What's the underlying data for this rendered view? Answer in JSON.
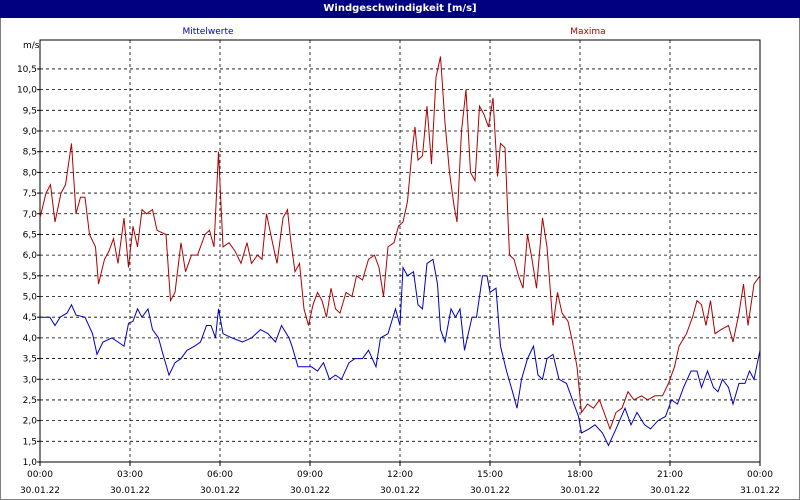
{
  "window": {
    "title": "Windgeschwindigkeit [m/s]"
  },
  "chart_data": {
    "type": "line",
    "title": "Windgeschwindigkeit [m/s]",
    "ylabel": "m/s",
    "xlabel": "",
    "ylim": [
      1.0,
      11.2
    ],
    "xlim": [
      0,
      24
    ],
    "grid": true,
    "yticks": [
      1.0,
      1.5,
      2.0,
      2.5,
      3.0,
      3.5,
      4.0,
      4.5,
      5.0,
      5.5,
      6.0,
      6.5,
      7.0,
      7.5,
      8.0,
      8.5,
      9.0,
      9.5,
      10.0,
      10.5
    ],
    "ytick_labels": [
      "1,0",
      "1,5",
      "2,0",
      "2,5",
      "3,0",
      "3,5",
      "4,0",
      "4,5",
      "5,0",
      "5,5",
      "6,0",
      "6,5",
      "7,0",
      "7,5",
      "8,0",
      "8,5",
      "9,0",
      "9,5",
      "10,0",
      "10,5"
    ],
    "xticks": [
      {
        "time": "00:00",
        "date": "30.01.22"
      },
      {
        "time": "03:00",
        "date": "30.01.22"
      },
      {
        "time": "06:00",
        "date": "30.01.22"
      },
      {
        "time": "09:00",
        "date": "30.01.22"
      },
      {
        "time": "12:00",
        "date": "30.01.22"
      },
      {
        "time": "15:00",
        "date": "30.01.22"
      },
      {
        "time": "18:00",
        "date": "30.01.22"
      },
      {
        "time": "21:00",
        "date": "30.01.22"
      },
      {
        "time": "00:00",
        "date": "31.01.22"
      }
    ],
    "series": [
      {
        "name": "Mittelwerte",
        "color": "#0000c0",
        "points": [
          [
            0,
            4.5
          ],
          [
            0.33,
            4.5
          ],
          [
            0.5,
            4.3
          ],
          [
            0.67,
            4.5
          ],
          [
            0.9,
            4.6
          ],
          [
            1.05,
            4.8
          ],
          [
            1.2,
            4.55
          ],
          [
            1.5,
            4.5
          ],
          [
            1.75,
            4.1
          ],
          [
            1.9,
            3.6
          ],
          [
            2.1,
            3.9
          ],
          [
            2.4,
            4.0
          ],
          [
            2.6,
            3.9
          ],
          [
            2.8,
            3.8
          ],
          [
            2.95,
            4.35
          ],
          [
            3.1,
            4.4
          ],
          [
            3.25,
            4.7
          ],
          [
            3.4,
            4.5
          ],
          [
            3.6,
            4.7
          ],
          [
            3.75,
            4.2
          ],
          [
            3.95,
            4.0
          ],
          [
            4.1,
            3.6
          ],
          [
            4.3,
            3.1
          ],
          [
            4.5,
            3.4
          ],
          [
            4.7,
            3.5
          ],
          [
            4.9,
            3.7
          ],
          [
            5.15,
            3.8
          ],
          [
            5.35,
            3.9
          ],
          [
            5.55,
            4.3
          ],
          [
            5.7,
            4.3
          ],
          [
            5.85,
            4.0
          ],
          [
            5.95,
            4.7
          ],
          [
            6.1,
            4.1
          ],
          [
            6.4,
            4.0
          ],
          [
            6.75,
            3.9
          ],
          [
            7.05,
            4.0
          ],
          [
            7.35,
            4.2
          ],
          [
            7.6,
            4.1
          ],
          [
            7.85,
            3.9
          ],
          [
            8.05,
            4.3
          ],
          [
            8.3,
            4.0
          ],
          [
            8.4,
            3.8
          ],
          [
            8.6,
            3.3
          ],
          [
            9.05,
            3.3
          ],
          [
            9.25,
            3.2
          ],
          [
            9.45,
            3.4
          ],
          [
            9.65,
            3.0
          ],
          [
            9.85,
            3.1
          ],
          [
            10.05,
            3.0
          ],
          [
            10.3,
            3.4
          ],
          [
            10.5,
            3.5
          ],
          [
            10.75,
            3.5
          ],
          [
            10.95,
            3.7
          ],
          [
            11.2,
            3.3
          ],
          [
            11.35,
            4.0
          ],
          [
            11.6,
            4.1
          ],
          [
            11.85,
            4.7
          ],
          [
            12.0,
            4.3
          ],
          [
            12.1,
            5.7
          ],
          [
            12.25,
            5.5
          ],
          [
            12.45,
            5.6
          ],
          [
            12.6,
            4.8
          ],
          [
            12.75,
            4.7
          ],
          [
            12.9,
            5.8
          ],
          [
            13.1,
            5.9
          ],
          [
            13.25,
            5.3
          ],
          [
            13.35,
            4.2
          ],
          [
            13.5,
            3.9
          ],
          [
            13.7,
            4.7
          ],
          [
            13.85,
            4.5
          ],
          [
            14.0,
            4.7
          ],
          [
            14.15,
            3.7
          ],
          [
            14.4,
            4.5
          ],
          [
            14.55,
            4.5
          ],
          [
            14.75,
            5.5
          ],
          [
            14.9,
            5.5
          ],
          [
            15.0,
            5.1
          ],
          [
            15.2,
            5.2
          ],
          [
            15.35,
            3.8
          ],
          [
            15.55,
            3.2
          ],
          [
            15.75,
            2.7
          ],
          [
            15.9,
            2.3
          ],
          [
            16.05,
            3.0
          ],
          [
            16.25,
            3.5
          ],
          [
            16.45,
            3.8
          ],
          [
            16.6,
            3.1
          ],
          [
            16.75,
            3.0
          ],
          [
            16.9,
            3.5
          ],
          [
            17.1,
            3.6
          ],
          [
            17.3,
            3.0
          ],
          [
            17.55,
            2.9
          ],
          [
            17.75,
            2.5
          ],
          [
            17.95,
            2.1
          ],
          [
            18.05,
            1.7
          ],
          [
            18.3,
            1.8
          ],
          [
            18.5,
            1.9
          ],
          [
            18.75,
            1.7
          ],
          [
            18.95,
            1.4
          ],
          [
            19.2,
            1.8
          ],
          [
            19.5,
            2.3
          ],
          [
            19.7,
            1.9
          ],
          [
            19.9,
            2.2
          ],
          [
            20.15,
            1.9
          ],
          [
            20.35,
            1.8
          ],
          [
            20.6,
            2.0
          ],
          [
            20.85,
            2.1
          ],
          [
            21.05,
            2.5
          ],
          [
            21.25,
            2.4
          ],
          [
            21.45,
            2.8
          ],
          [
            21.7,
            3.2
          ],
          [
            21.9,
            3.2
          ],
          [
            22.05,
            2.8
          ],
          [
            22.25,
            3.2
          ],
          [
            22.45,
            2.8
          ],
          [
            22.6,
            2.7
          ],
          [
            22.75,
            3.0
          ],
          [
            22.95,
            2.8
          ],
          [
            23.1,
            2.4
          ],
          [
            23.3,
            2.9
          ],
          [
            23.5,
            2.9
          ],
          [
            23.65,
            3.2
          ],
          [
            23.8,
            3.0
          ],
          [
            24.0,
            3.7
          ]
        ]
      },
      {
        "name": "Maxima",
        "color": "#b00000",
        "points": [
          [
            0,
            6.9
          ],
          [
            0.2,
            7.5
          ],
          [
            0.35,
            7.7
          ],
          [
            0.5,
            6.8
          ],
          [
            0.7,
            7.5
          ],
          [
            0.85,
            7.7
          ],
          [
            1.05,
            8.7
          ],
          [
            1.2,
            7.0
          ],
          [
            1.35,
            7.4
          ],
          [
            1.5,
            7.4
          ],
          [
            1.65,
            6.5
          ],
          [
            1.85,
            6.2
          ],
          [
            1.95,
            5.3
          ],
          [
            2.15,
            5.9
          ],
          [
            2.3,
            6.1
          ],
          [
            2.45,
            6.4
          ],
          [
            2.6,
            5.8
          ],
          [
            2.8,
            6.9
          ],
          [
            2.95,
            5.7
          ],
          [
            3.1,
            6.7
          ],
          [
            3.25,
            6.2
          ],
          [
            3.4,
            7.1
          ],
          [
            3.55,
            7.0
          ],
          [
            3.75,
            7.1
          ],
          [
            3.9,
            6.6
          ],
          [
            4.2,
            6.5
          ],
          [
            4.35,
            4.9
          ],
          [
            4.5,
            5.1
          ],
          [
            4.7,
            6.3
          ],
          [
            4.85,
            5.6
          ],
          [
            5.05,
            6.0
          ],
          [
            5.25,
            6.0
          ],
          [
            5.5,
            6.5
          ],
          [
            5.65,
            6.6
          ],
          [
            5.8,
            6.2
          ],
          [
            5.95,
            8.5
          ],
          [
            6.1,
            6.2
          ],
          [
            6.3,
            6.3
          ],
          [
            6.5,
            6.1
          ],
          [
            6.7,
            5.8
          ],
          [
            6.9,
            6.3
          ],
          [
            7.05,
            5.8
          ],
          [
            7.25,
            6.0
          ],
          [
            7.4,
            5.9
          ],
          [
            7.55,
            7.0
          ],
          [
            7.75,
            6.3
          ],
          [
            7.9,
            5.8
          ],
          [
            8.1,
            6.9
          ],
          [
            8.25,
            7.1
          ],
          [
            8.35,
            6.4
          ],
          [
            8.5,
            5.6
          ],
          [
            8.65,
            5.8
          ],
          [
            8.8,
            4.7
          ],
          [
            8.95,
            4.3
          ],
          [
            9.1,
            4.8
          ],
          [
            9.25,
            5.1
          ],
          [
            9.4,
            4.9
          ],
          [
            9.55,
            4.5
          ],
          [
            9.7,
            5.2
          ],
          [
            9.85,
            4.7
          ],
          [
            10.0,
            4.6
          ],
          [
            10.2,
            5.1
          ],
          [
            10.4,
            5.0
          ],
          [
            10.55,
            5.5
          ],
          [
            10.75,
            5.4
          ],
          [
            10.95,
            5.9
          ],
          [
            11.15,
            6.0
          ],
          [
            11.3,
            5.7
          ],
          [
            11.45,
            5.0
          ],
          [
            11.6,
            6.2
          ],
          [
            11.8,
            6.3
          ],
          [
            11.95,
            6.7
          ],
          [
            12.1,
            6.8
          ],
          [
            12.25,
            7.3
          ],
          [
            12.4,
            8.5
          ],
          [
            12.5,
            9.1
          ],
          [
            12.6,
            8.3
          ],
          [
            12.75,
            8.4
          ],
          [
            12.9,
            9.6
          ],
          [
            13.05,
            8.2
          ],
          [
            13.2,
            10.3
          ],
          [
            13.35,
            10.8
          ],
          [
            13.5,
            9.2
          ],
          [
            13.65,
            8.0
          ],
          [
            13.8,
            7.2
          ],
          [
            13.9,
            6.8
          ],
          [
            14.05,
            9.0
          ],
          [
            14.2,
            10.0
          ],
          [
            14.35,
            8.0
          ],
          [
            14.5,
            7.8
          ],
          [
            14.65,
            9.6
          ],
          [
            14.8,
            9.4
          ],
          [
            14.95,
            9.1
          ],
          [
            15.1,
            9.8
          ],
          [
            15.25,
            7.9
          ],
          [
            15.35,
            8.7
          ],
          [
            15.5,
            8.6
          ],
          [
            15.65,
            6.0
          ],
          [
            15.8,
            5.9
          ],
          [
            15.95,
            5.5
          ],
          [
            16.1,
            5.2
          ],
          [
            16.25,
            6.5
          ],
          [
            16.4,
            5.9
          ],
          [
            16.55,
            5.2
          ],
          [
            16.75,
            6.9
          ],
          [
            16.9,
            6.2
          ],
          [
            17.1,
            4.3
          ],
          [
            17.25,
            5.1
          ],
          [
            17.4,
            4.6
          ],
          [
            17.6,
            4.4
          ],
          [
            17.75,
            3.9
          ],
          [
            17.9,
            3.3
          ],
          [
            18.05,
            2.2
          ],
          [
            18.25,
            2.4
          ],
          [
            18.45,
            2.3
          ],
          [
            18.65,
            2.5
          ],
          [
            18.85,
            2.1
          ],
          [
            19.0,
            1.8
          ],
          [
            19.2,
            2.2
          ],
          [
            19.4,
            2.3
          ],
          [
            19.6,
            2.7
          ],
          [
            19.8,
            2.5
          ],
          [
            20.05,
            2.6
          ],
          [
            20.25,
            2.5
          ],
          [
            20.5,
            2.6
          ],
          [
            20.75,
            2.6
          ],
          [
            20.95,
            2.9
          ],
          [
            21.15,
            3.3
          ],
          [
            21.3,
            3.8
          ],
          [
            21.55,
            4.1
          ],
          [
            21.75,
            4.5
          ],
          [
            21.9,
            4.9
          ],
          [
            22.05,
            4.8
          ],
          [
            22.2,
            4.3
          ],
          [
            22.35,
            4.9
          ],
          [
            22.5,
            4.1
          ],
          [
            22.7,
            4.2
          ],
          [
            22.95,
            4.3
          ],
          [
            23.1,
            3.9
          ],
          [
            23.3,
            4.6
          ],
          [
            23.45,
            5.3
          ],
          [
            23.6,
            4.3
          ],
          [
            23.8,
            5.3
          ],
          [
            24.0,
            5.5
          ]
        ]
      }
    ]
  }
}
